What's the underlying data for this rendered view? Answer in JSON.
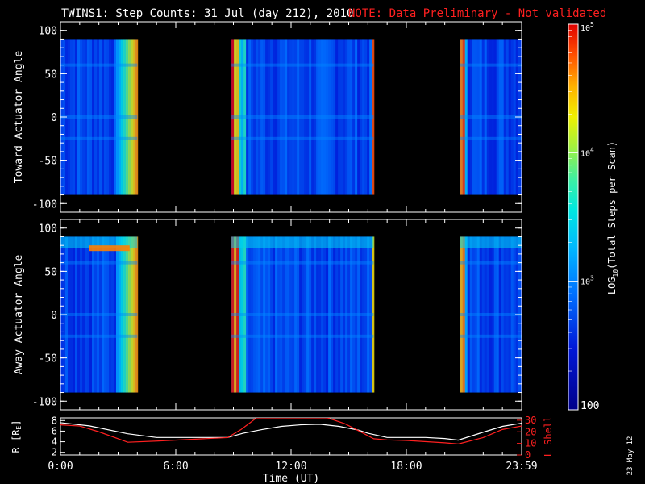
{
  "title": "TWINS1: Step Counts: 31 Jul (day 212), 2010",
  "note": "NOTE: Data Preliminary - Not validated",
  "date_stamp": "23 May 12",
  "colors": {
    "axis": "#ffffff",
    "note": "#ff2020",
    "r_line": "#ffffff",
    "l_line": "#ff2020"
  },
  "chart_data": [
    {
      "type": "heatmap",
      "name": "toward",
      "ylabel": "Toward Actuator Angle",
      "ylim": [
        -110,
        110
      ],
      "ytick_values": [
        -100,
        -50,
        0,
        50,
        100
      ],
      "ytick_labels": [
        "-100",
        "-50",
        "0",
        "50",
        "100"
      ],
      "data_angle_range": [
        -90,
        90
      ],
      "xlim_hours": [
        0,
        24
      ],
      "data_intervals_hours": [
        [
          0,
          4.0
        ],
        [
          8.9,
          16.3
        ],
        [
          20.8,
          24
        ]
      ]
    },
    {
      "type": "heatmap",
      "name": "away",
      "ylabel": "Away Actuator Angle",
      "ylim": [
        -110,
        110
      ],
      "ytick_values": [
        -100,
        -50,
        0,
        50,
        100
      ],
      "ytick_labels": [
        "-100",
        "-50",
        "0",
        "50",
        "100"
      ],
      "data_angle_range": [
        -90,
        90
      ],
      "xlim_hours": [
        0,
        24
      ],
      "data_intervals_hours": [
        [
          0,
          4.0
        ],
        [
          8.9,
          16.3
        ],
        [
          20.8,
          24
        ]
      ]
    },
    {
      "type": "line",
      "name": "orbit",
      "xlabel": "Time (UT)",
      "xtick_values": [
        0,
        6,
        12,
        18,
        24
      ],
      "xtick_labels": [
        "0:00",
        "6:00",
        "12:00",
        "18:00",
        "23:59"
      ],
      "left_axis_label": "R [R",
      "left_axis_sub": "E",
      "left_axis_close": "]",
      "left_ylim": [
        1.5,
        8.5
      ],
      "left_tick_values": [
        2,
        4,
        6,
        8
      ],
      "left_tick_labels": [
        "2",
        "4",
        "6",
        "8"
      ],
      "right_axis_label": "L Shell",
      "right_ylim": [
        0,
        32
      ],
      "right_tick_values": [
        0,
        10,
        20,
        30
      ],
      "right_tick_labels": [
        "0",
        "10",
        "20",
        "30"
      ],
      "series": [
        {
          "name": "R",
          "x": [
            0,
            1.5,
            3.5,
            5,
            8.7,
            9.5,
            10.5,
            11.5,
            12.5,
            13.5,
            14.5,
            15.5,
            16,
            17,
            18,
            19,
            20,
            20.7,
            22,
            23,
            24
          ],
          "y": [
            7.6,
            7.0,
            5.5,
            4.8,
            4.8,
            5.6,
            6.3,
            6.9,
            7.2,
            7.3,
            6.9,
            6.2,
            5.6,
            4.8,
            4.8,
            4.8,
            4.6,
            4.3,
            5.8,
            6.9,
            7.5
          ]
        },
        {
          "name": "L Shell",
          "x": [
            0,
            1.0,
            2.0,
            3.5,
            5,
            8.7,
            9.4,
            10.2,
            13.9,
            14.8,
            15.5,
            16.3,
            17,
            18,
            20,
            20.7,
            22,
            23,
            24
          ],
          "y": [
            26,
            25,
            20,
            11,
            12,
            15,
            22,
            32,
            32,
            27,
            21,
            14,
            13,
            12.5,
            10.5,
            9.5,
            15,
            22,
            25
          ]
        }
      ]
    }
  ],
  "colorbar": {
    "label": "LOG",
    "label_sub": "10",
    "label_rest": "(Total Steps per Scan)",
    "range": [
      100,
      100000
    ],
    "tick_values": [
      100,
      1000,
      10000,
      100000
    ],
    "ticks": [
      {
        "base": "10",
        "exp": "5"
      },
      {
        "base": "10",
        "exp": "4"
      },
      {
        "base": "10",
        "exp": "3"
      },
      {
        "base": "100",
        "exp": ""
      }
    ]
  }
}
